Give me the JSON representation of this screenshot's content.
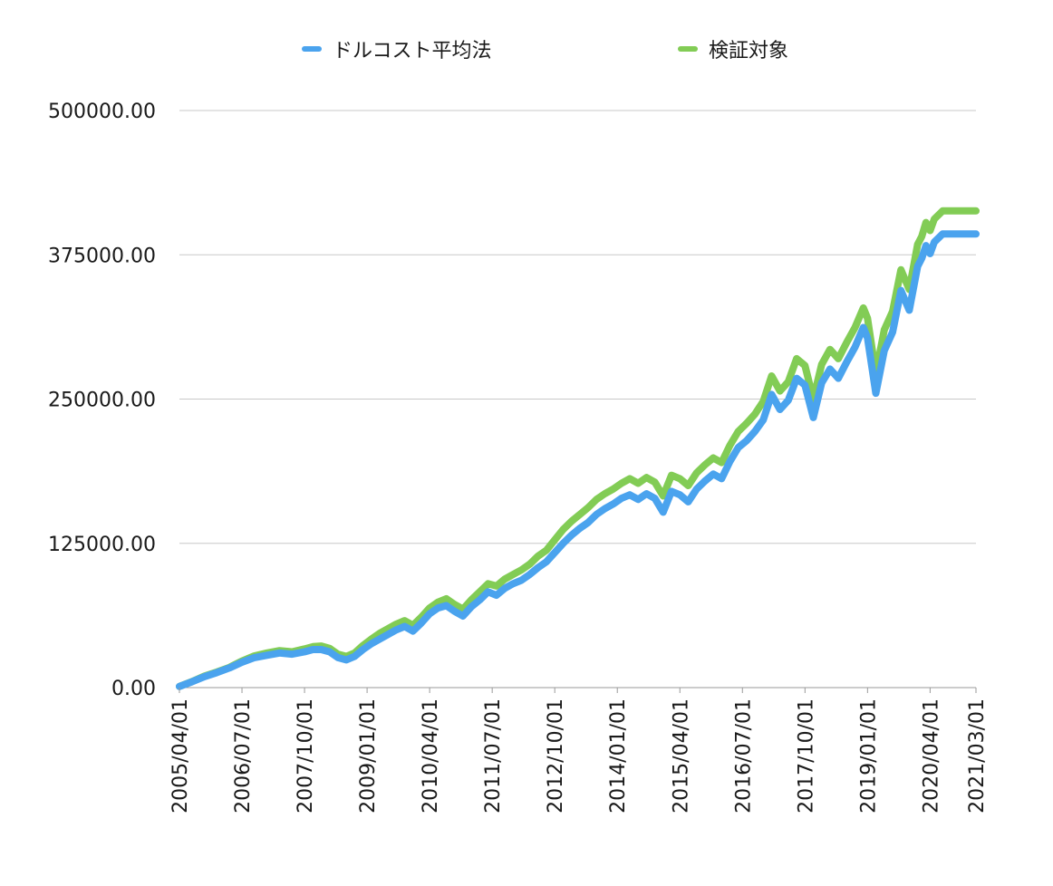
{
  "chart_data": {
    "type": "line",
    "title": "",
    "xlabel": "",
    "ylabel": "",
    "ylim": [
      0,
      500000
    ],
    "yticks": [
      "0.00",
      "125000.00",
      "250000.00",
      "375000.00",
      "500000.00"
    ],
    "ytick_values": [
      0,
      125000,
      250000,
      375000,
      500000
    ],
    "xticks": [
      "2005/04/01",
      "2006/07/01",
      "2007/10/01",
      "2009/01/01",
      "2010/04/01",
      "2011/07/01",
      "2012/10/01",
      "2014/01/01",
      "2015/04/01",
      "2016/07/01",
      "2017/10/01",
      "2019/01/01",
      "2020/04/01",
      "2021/03/01"
    ],
    "xtick_months": [
      0,
      15,
      30,
      45,
      60,
      75,
      90,
      105,
      120,
      135,
      150,
      165,
      180,
      191
    ],
    "grid": true,
    "legend_position": "top",
    "series": [
      {
        "name": "ドルコスト平均法",
        "color": "#4aa3ee",
        "x_months": [
          0,
          3,
          6,
          9,
          12,
          15,
          18,
          21,
          24,
          27,
          30,
          32,
          34,
          36,
          38,
          40,
          42,
          44,
          46,
          48,
          50,
          52,
          54,
          56,
          58,
          60,
          62,
          64,
          66,
          68,
          70,
          72,
          74,
          76,
          78,
          80,
          82,
          84,
          86,
          88,
          90,
          92,
          94,
          96,
          98,
          100,
          102,
          104,
          106,
          108,
          110,
          112,
          114,
          116,
          118,
          120,
          122,
          124,
          126,
          128,
          130,
          132,
          134,
          136,
          138,
          140,
          142,
          144,
          146,
          148,
          150,
          152,
          154,
          156,
          158,
          160,
          162,
          164,
          165,
          167,
          169,
          171,
          173,
          175,
          177,
          178,
          179,
          180,
          181,
          183,
          185,
          186,
          187,
          188,
          189,
          190,
          191
        ],
        "values": [
          1000,
          5000,
          9500,
          13000,
          17000,
          22000,
          26000,
          28000,
          30000,
          29000,
          31000,
          33000,
          33000,
          31000,
          26000,
          24000,
          27000,
          33000,
          38000,
          42000,
          46000,
          50000,
          53000,
          49000,
          56000,
          64000,
          69000,
          71000,
          66000,
          62000,
          70000,
          76000,
          83000,
          80000,
          86000,
          90000,
          93000,
          98000,
          104000,
          109000,
          117000,
          125000,
          132000,
          138000,
          143000,
          150000,
          155000,
          159000,
          164000,
          167000,
          163000,
          168000,
          164000,
          152000,
          170000,
          167000,
          161000,
          172000,
          179000,
          185000,
          181000,
          196000,
          208000,
          214000,
          222000,
          232000,
          254000,
          241000,
          249000,
          268000,
          262000,
          234000,
          264000,
          276000,
          268000,
          282000,
          295000,
          312000,
          303000,
          255000,
          292000,
          308000,
          344000,
          327000,
          365000,
          372000,
          383000,
          376000,
          386000,
          393000,
          393000,
          393000,
          393000,
          393000,
          393000,
          393000,
          393000
        ],
        "note": ""
      },
      {
        "name": "検証対象",
        "color": "#82cc55",
        "x_months": [
          0,
          3,
          6,
          9,
          12,
          15,
          18,
          21,
          24,
          27,
          30,
          32,
          34,
          36,
          38,
          40,
          42,
          44,
          46,
          48,
          50,
          52,
          54,
          56,
          58,
          60,
          62,
          64,
          66,
          68,
          70,
          72,
          74,
          76,
          78,
          80,
          82,
          84,
          86,
          88,
          90,
          92,
          94,
          96,
          98,
          100,
          102,
          104,
          106,
          108,
          110,
          112,
          114,
          116,
          118,
          120,
          122,
          124,
          126,
          128,
          130,
          132,
          134,
          136,
          138,
          140,
          142,
          144,
          146,
          148,
          150,
          152,
          154,
          156,
          158,
          160,
          162,
          164,
          165,
          167,
          169,
          171,
          173,
          175,
          177,
          178,
          179,
          180,
          181,
          183,
          185,
          186,
          187,
          188,
          189,
          190,
          191
        ],
        "values": [
          1000,
          5200,
          10000,
          13500,
          17500,
          23000,
          27500,
          30000,
          32000,
          31000,
          33500,
          35500,
          36000,
          34000,
          29000,
          27000,
          30000,
          36500,
          42000,
          47000,
          51000,
          55000,
          58000,
          54000,
          61000,
          69000,
          74000,
          77000,
          72000,
          68000,
          76000,
          83000,
          90000,
          88000,
          94000,
          98000,
          102000,
          107000,
          114000,
          119000,
          128000,
          137000,
          144000,
          150000,
          156000,
          163000,
          168000,
          172000,
          177000,
          181000,
          177000,
          182000,
          178000,
          166000,
          184000,
          181000,
          175000,
          186000,
          193000,
          199000,
          195000,
          210000,
          222000,
          229000,
          237000,
          248000,
          270000,
          257000,
          265000,
          285000,
          279000,
          250000,
          280000,
          293000,
          285000,
          299000,
          312000,
          329000,
          320000,
          272000,
          310000,
          326000,
          362000,
          345000,
          384000,
          391000,
          403000,
          396000,
          406000,
          413000,
          413000,
          413000,
          413000,
          413000,
          413000,
          413000,
          413000
        ]
      }
    ]
  },
  "legend": {
    "items": [
      {
        "label": "ドルコスト平均法",
        "color": "#4aa3ee"
      },
      {
        "label": "検証対象",
        "color": "#82cc55"
      }
    ]
  }
}
